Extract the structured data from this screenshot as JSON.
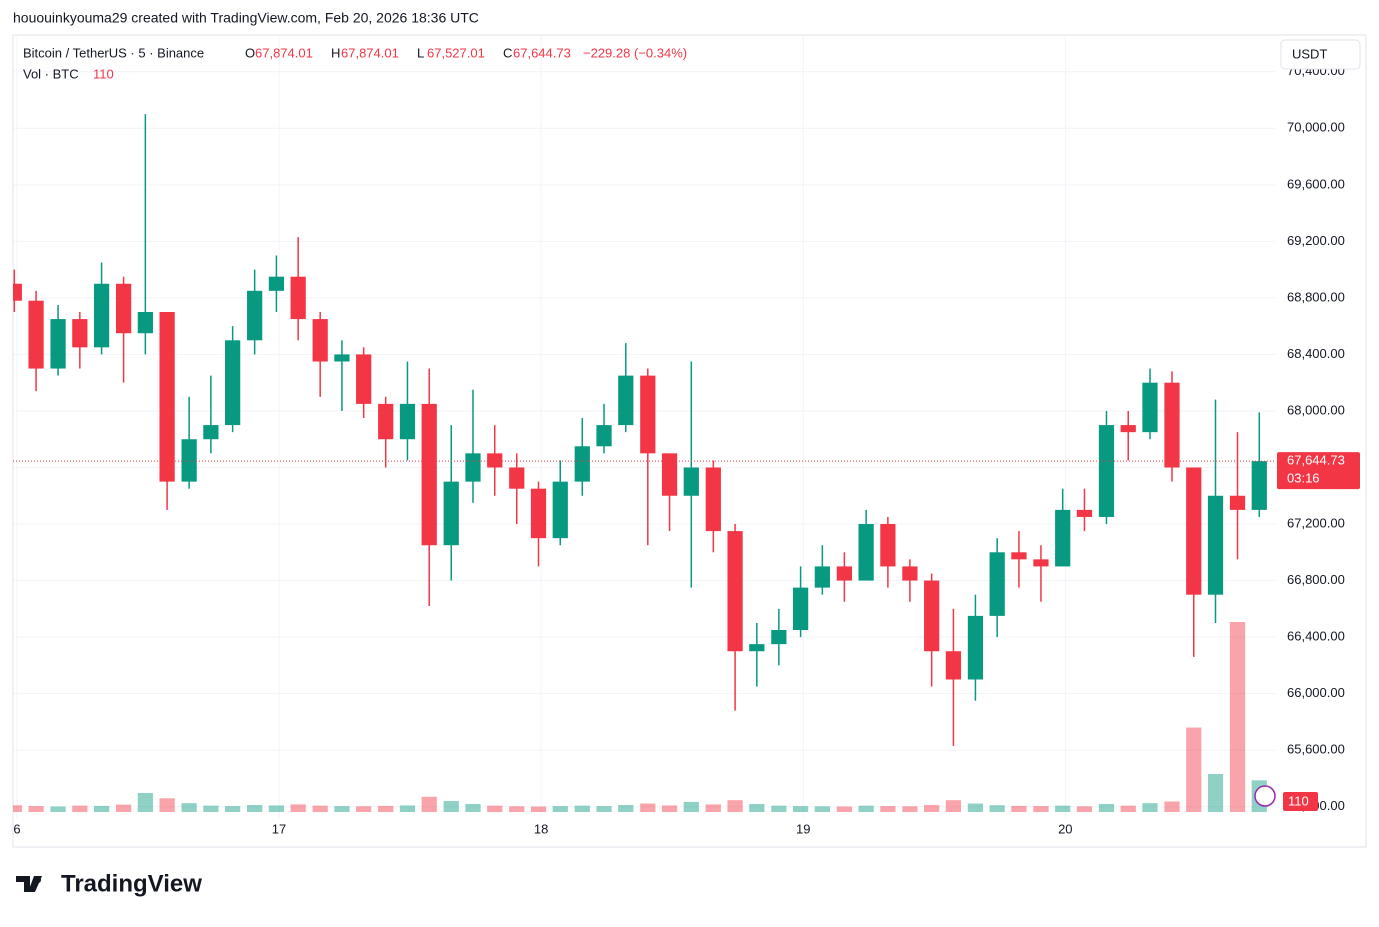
{
  "header": {
    "attribution": "hououinkyouma29 created with TradingView.com, Feb 20, 2026 18:36 UTC",
    "logo": "TradingView"
  },
  "chart_data": {
    "type": "candlestick",
    "symbol": "Bitcoin / TetherUS · 5 · Binance",
    "ohlc_letters": [
      "O",
      "H",
      "L",
      "C"
    ],
    "ohlc_values": [
      "67,874.01",
      "67,874.01",
      "67,527.01",
      "67,644.73"
    ],
    "change": "−229.28 (−0.34%)",
    "volume_title": "Vol · BTC",
    "volume_value": "110",
    "currency": "USDT",
    "last_price_label": "67,644.73",
    "countdown": "03:16",
    "up_color": "#089981",
    "down_color": "#f23645",
    "grid": true,
    "x": [
      15.99,
      16.073,
      16.157,
      16.24,
      16.323,
      16.407,
      16.49,
      16.573,
      16.657,
      16.74,
      16.823,
      16.907,
      16.99,
      17.073,
      17.157,
      17.24,
      17.323,
      17.407,
      17.49,
      17.573,
      17.657,
      17.74,
      17.823,
      17.907,
      17.99,
      18.073,
      18.157,
      18.24,
      18.323,
      18.407,
      18.49,
      18.573,
      18.657,
      18.74,
      18.823,
      18.907,
      18.99,
      19.073,
      19.157,
      19.24,
      19.323,
      19.407,
      19.49,
      19.573,
      19.657,
      19.74,
      19.823,
      19.907,
      19.99,
      20.073,
      20.157,
      20.24,
      20.323,
      20.407,
      20.49,
      20.573,
      20.657,
      20.74
    ],
    "open": [
      68900,
      68780,
      68300,
      68650,
      68450,
      68900,
      68550,
      68700,
      67500,
      67800,
      67900,
      68500,
      68850,
      68950,
      68650,
      68350,
      68400,
      68050,
      67800,
      68050,
      67050,
      67500,
      67700,
      67600,
      67450,
      67100,
      67500,
      67750,
      67900,
      68250,
      67700,
      67400,
      67600,
      67150,
      66300,
      66350,
      66450,
      66750,
      66900,
      66800,
      67200,
      66900,
      66800,
      66300,
      66100,
      66550,
      67000,
      66950,
      66900,
      67300,
      67250,
      67900,
      67850,
      68200,
      67600,
      66700,
      67400,
      67300
    ],
    "high": [
      69000,
      68850,
      68750,
      68700,
      69050,
      68950,
      70100,
      68700,
      68100,
      68250,
      68600,
      69000,
      69100,
      69230,
      68700,
      68500,
      68450,
      68100,
      68350,
      68300,
      67900,
      68150,
      67900,
      67700,
      67500,
      67650,
      67950,
      68050,
      68480,
      68300,
      67700,
      68350,
      67650,
      67200,
      66500,
      66600,
      66900,
      67050,
      67000,
      67300,
      67250,
      66950,
      66850,
      66600,
      66700,
      67100,
      67150,
      67050,
      67450,
      67450,
      68000,
      68000,
      68300,
      68280,
      67600,
      68080,
      67850,
      67990
    ],
    "low": [
      68700,
      68140,
      68250,
      68300,
      68400,
      68200,
      68400,
      67300,
      67450,
      67700,
      67850,
      68400,
      68700,
      68500,
      68100,
      68000,
      67950,
      67600,
      67650,
      66620,
      66800,
      67350,
      67400,
      67200,
      66900,
      67050,
      67400,
      67700,
      67850,
      67050,
      67150,
      66750,
      67000,
      65880,
      66050,
      66200,
      66400,
      66700,
      66650,
      66800,
      66750,
      66650,
      66050,
      65630,
      65950,
      66400,
      66750,
      66650,
      66900,
      67150,
      67200,
      67650,
      67800,
      67500,
      66260,
      66500,
      66950,
      67250
    ],
    "close": [
      68780,
      68300,
      68650,
      68450,
      68900,
      68550,
      68700,
      67500,
      67800,
      67900,
      68500,
      68850,
      68950,
      68650,
      68350,
      68400,
      68050,
      67800,
      68050,
      67050,
      67500,
      67700,
      67600,
      67450,
      67100,
      67500,
      67750,
      67900,
      68250,
      67700,
      67400,
      67600,
      67150,
      66300,
      66350,
      66450,
      66750,
      66900,
      66800,
      67200,
      66900,
      66800,
      66300,
      66100,
      66550,
      67000,
      66950,
      66900,
      67300,
      67250,
      67900,
      67850,
      68200,
      67600,
      66700,
      67400,
      67300,
      67644.73
    ],
    "volume": [
      320,
      280,
      260,
      300,
      290,
      350,
      900,
      650,
      420,
      300,
      280,
      330,
      310,
      360,
      300,
      280,
      270,
      290,
      310,
      720,
      520,
      380,
      300,
      270,
      260,
      280,
      300,
      280,
      330,
      400,
      310,
      480,
      360,
      560,
      380,
      300,
      280,
      270,
      260,
      300,
      280,
      270,
      330,
      560,
      400,
      320,
      290,
      280,
      300,
      270,
      380,
      300,
      420,
      500,
      4000,
      1800,
      9000,
      1500
    ],
    "xlim": [
      15.985,
      20.8
    ],
    "xticks": [
      {
        "value": 16,
        "label": "6"
      },
      17,
      18,
      19,
      20
    ],
    "ylim": [
      65120,
      70660
    ],
    "yticks": [
      {
        "value": 65200,
        "label": "65,200.00"
      },
      {
        "value": 65600,
        "label": "65,600.00"
      },
      {
        "value": 66000,
        "label": "66,000.00"
      },
      {
        "value": 66400,
        "label": "66,400.00"
      },
      {
        "value": 66800,
        "label": "66,800.00"
      },
      {
        "value": 67200,
        "label": "67,200.00"
      },
      {
        "value": 67600,
        "label": "67,600.00"
      },
      {
        "value": 68000,
        "label": "68,000.00"
      },
      {
        "value": 68400,
        "label": "68,400.00"
      },
      {
        "value": 68800,
        "label": "68,800.00"
      },
      {
        "value": 69200,
        "label": "69,200.00"
      },
      {
        "value": 69600,
        "label": "69,600.00"
      },
      {
        "value": 70000,
        "label": "70,000.00"
      },
      {
        "value": 70400,
        "label": "70,400.00"
      }
    ]
  }
}
